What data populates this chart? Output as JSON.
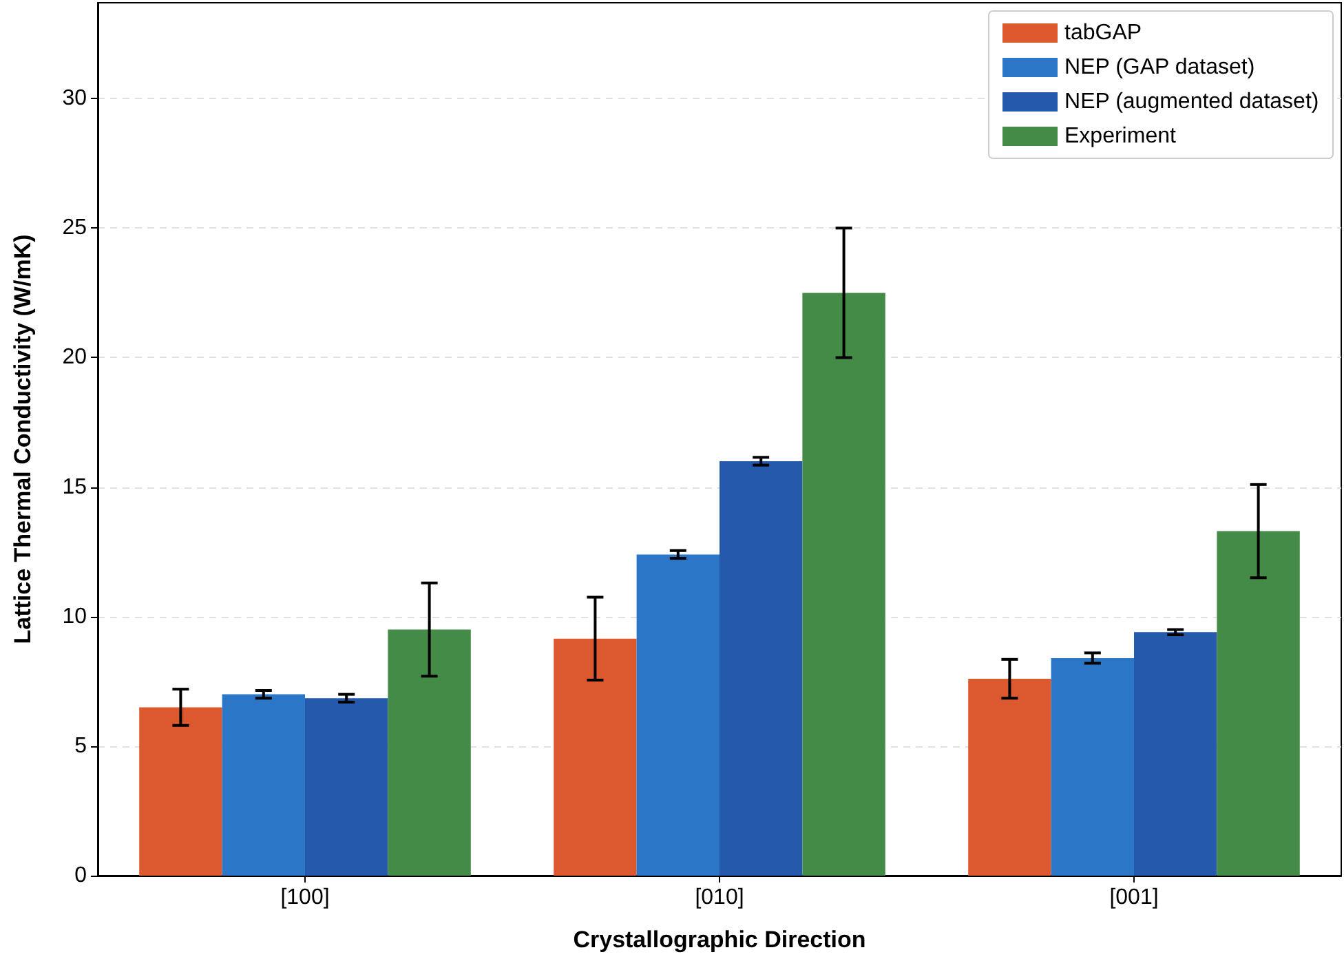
{
  "chart_data": {
    "type": "bar",
    "xlabel": "Crystallographic Direction",
    "ylabel": "Lattice Thermal Conductivity (W/mK)",
    "categories": [
      "[100]",
      "[010]",
      "[001]"
    ],
    "series": [
      {
        "name": "tabGAP",
        "color": "#dc582f",
        "values": [
          6.5,
          9.15,
          7.6
        ],
        "errors": [
          0.7,
          1.6,
          0.75
        ]
      },
      {
        "name": "NEP (GAP dataset)",
        "color": "#2c76c7",
        "values": [
          7.0,
          12.4,
          8.4
        ],
        "errors": [
          0.15,
          0.15,
          0.2
        ]
      },
      {
        "name": "NEP (augmented dataset)",
        "color": "#2459ab",
        "values": [
          6.85,
          16.0,
          9.4
        ],
        "errors": [
          0.15,
          0.15,
          0.1
        ]
      },
      {
        "name": "Experiment",
        "color": "#448b47",
        "values": [
          9.5,
          22.5,
          13.3
        ],
        "errors": [
          1.8,
          2.5,
          1.8
        ]
      }
    ],
    "ylim": [
      0,
      33.7
    ],
    "yticks": [
      0,
      5,
      10,
      15,
      20,
      25,
      30
    ],
    "grid": "y",
    "legend": "top right"
  }
}
